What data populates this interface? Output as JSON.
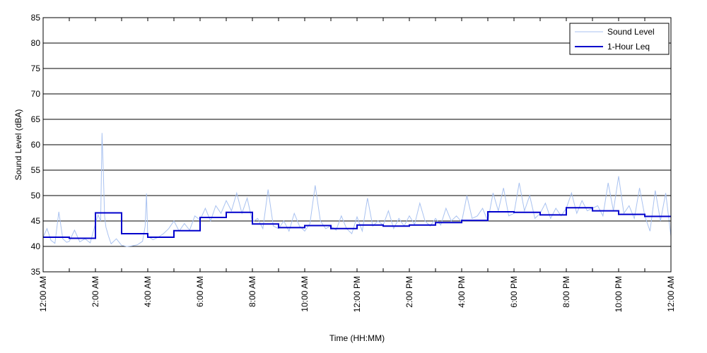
{
  "chart_data": {
    "type": "line",
    "xlabel": "Time (HH:MM)",
    "ylabel": "Sound Level (dBA)",
    "xlim": [
      0,
      24
    ],
    "ylim": [
      35,
      85
    ],
    "y_ticks": [
      35,
      40,
      45,
      50,
      55,
      60,
      65,
      70,
      75,
      80,
      85
    ],
    "x_ticks": [
      0,
      2,
      4,
      6,
      8,
      10,
      12,
      14,
      16,
      18,
      20,
      22,
      24
    ],
    "x_tick_labels": [
      "12:00 AM",
      "2:00 AM",
      "4:00 AM",
      "6:00 AM",
      "8:00 AM",
      "10:00 AM",
      "12:00 PM",
      "2:00 PM",
      "4:00 PM",
      "6:00 PM",
      "8:00 PM",
      "10:00 PM",
      "12:00 AM"
    ],
    "x_minor_ticks": [
      1,
      3,
      5,
      7,
      9,
      11,
      13,
      15,
      17,
      19,
      21,
      23
    ],
    "grid": "horizontal",
    "legend_position": "top-right",
    "series": [
      {
        "name": "Sound Level",
        "color": "#a9c2f0",
        "x": [
          0,
          0.15,
          0.3,
          0.45,
          0.6,
          0.75,
          0.9,
          1.0,
          1.2,
          1.4,
          1.6,
          1.8,
          2.0,
          2.1,
          2.2,
          2.25,
          2.3,
          2.35,
          2.4,
          2.5,
          2.6,
          2.8,
          3.0,
          3.2,
          3.4,
          3.6,
          3.8,
          3.9,
          3.95,
          4.0,
          4.2,
          4.4,
          4.6,
          4.8,
          5.0,
          5.2,
          5.4,
          5.6,
          5.8,
          6.0,
          6.2,
          6.4,
          6.6,
          6.8,
          7.0,
          7.2,
          7.4,
          7.6,
          7.8,
          8.0,
          8.2,
          8.4,
          8.6,
          8.8,
          9.0,
          9.2,
          9.4,
          9.6,
          9.8,
          10.0,
          10.2,
          10.4,
          10.6,
          10.8,
          11.0,
          11.2,
          11.4,
          11.6,
          11.8,
          12.0,
          12.2,
          12.4,
          12.6,
          12.8,
          13.0,
          13.2,
          13.4,
          13.6,
          13.8,
          14.0,
          14.2,
          14.4,
          14.6,
          14.8,
          15.0,
          15.2,
          15.4,
          15.6,
          15.8,
          16.0,
          16.2,
          16.4,
          16.6,
          16.8,
          17.0,
          17.2,
          17.4,
          17.6,
          17.8,
          18.0,
          18.2,
          18.4,
          18.6,
          18.8,
          19.0,
          19.2,
          19.4,
          19.6,
          19.8,
          20.0,
          20.2,
          20.4,
          20.6,
          20.8,
          21.0,
          21.2,
          21.4,
          21.6,
          21.8,
          22.0,
          22.2,
          22.4,
          22.6,
          22.8,
          23.0,
          23.2,
          23.4,
          23.6,
          23.8,
          24.0
        ],
        "values": [
          41.8,
          43.5,
          41.2,
          40.6,
          46.8,
          41.5,
          40.8,
          41.0,
          43.2,
          40.9,
          41.5,
          40.7,
          44.5,
          46.2,
          45.0,
          62.3,
          55.0,
          46.0,
          43.8,
          42.0,
          40.5,
          41.5,
          40.2,
          40.0,
          40.1,
          40.3,
          41.0,
          44.0,
          50.4,
          42.0,
          41.3,
          41.8,
          42.5,
          43.5,
          45.0,
          43.0,
          44.5,
          43.2,
          46.0,
          45.2,
          47.5,
          45.0,
          48.0,
          46.5,
          49.0,
          47.0,
          50.5,
          46.5,
          49.5,
          44.8,
          45.5,
          43.5,
          51.2,
          44.0,
          43.5,
          45.0,
          43.0,
          46.5,
          44.0,
          43.0,
          44.5,
          52.0,
          45.0,
          43.5,
          44.0,
          43.2,
          46.0,
          43.5,
          42.5,
          45.8,
          43.0,
          49.5,
          44.0,
          45.0,
          44.2,
          47.0,
          43.5,
          45.5,
          44.0,
          46.0,
          44.3,
          48.5,
          45.0,
          44.0,
          45.5,
          44.2,
          47.5,
          45.0,
          46.0,
          44.8,
          50.0,
          45.5,
          46.0,
          47.5,
          45.0,
          50.5,
          47.0,
          51.5,
          46.0,
          46.5,
          52.5,
          47.0,
          50.0,
          45.5,
          46.5,
          48.5,
          45.5,
          47.5,
          46.0,
          47.5,
          50.5,
          46.5,
          49.0,
          47.0,
          47.5,
          48.0,
          46.0,
          52.5,
          47.0,
          53.8,
          46.5,
          48.0,
          45.5,
          51.5,
          46.0,
          43.0,
          51.0,
          45.0,
          50.5,
          42.0
        ]
      },
      {
        "name": "1-Hour Leq",
        "color": "#0000cc",
        "step": true,
        "x": [
          0,
          1,
          2,
          3,
          4,
          5,
          6,
          7,
          8,
          9,
          10,
          11,
          12,
          13,
          14,
          15,
          16,
          17,
          18,
          19,
          20,
          21,
          22,
          23
        ],
        "values": [
          41.8,
          41.6,
          46.6,
          42.5,
          41.8,
          43.1,
          45.7,
          46.7,
          44.4,
          43.7,
          44.1,
          43.5,
          44.2,
          44.0,
          44.2,
          44.7,
          45.1,
          46.8,
          46.7,
          46.2,
          47.6,
          47.0,
          46.3,
          45.9
        ]
      }
    ]
  }
}
